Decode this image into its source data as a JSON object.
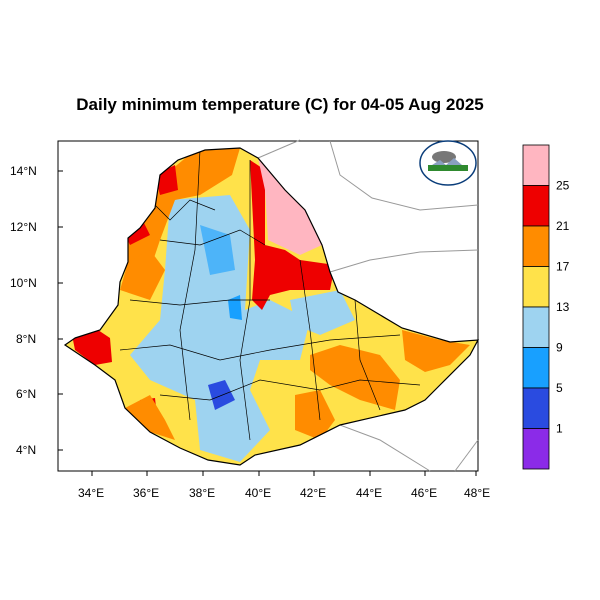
{
  "title": "Daily minimum temperature (C) for 04-05 Aug 2025",
  "axes": {
    "x_ticks": [
      "34°E",
      "36°E",
      "38°E",
      "40°E",
      "42°E",
      "44°E",
      "46°E",
      "48°E"
    ],
    "y_ticks": [
      "14°N",
      "12°N",
      "10°N",
      "8°N",
      "6°N",
      "4°N"
    ]
  },
  "legend": {
    "colors": [
      "#FFB6C1",
      "#EE0000",
      "#FF8C00",
      "#FFE24A",
      "#9ED3F0",
      "#18A0FF",
      "#2A4BE0",
      "#8B2BE8"
    ],
    "labels": [
      "25",
      "21",
      "17",
      "13",
      "9",
      "5",
      "1"
    ]
  },
  "logo": {
    "name": "meteorology-agency-logo"
  }
}
